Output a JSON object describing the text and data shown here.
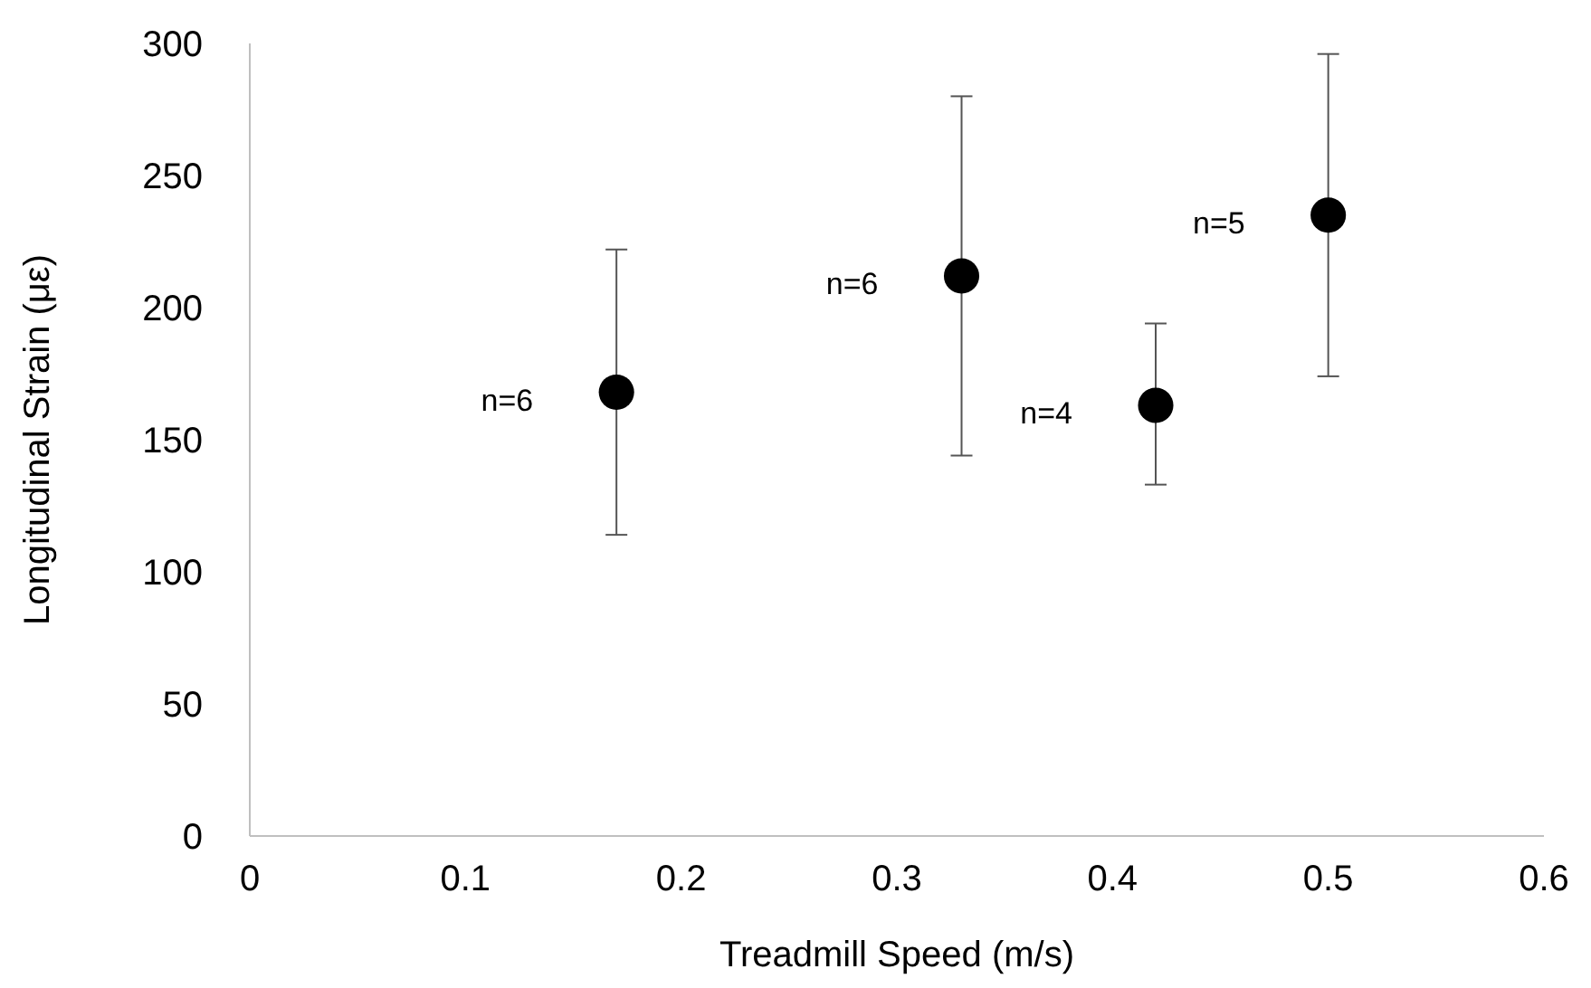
{
  "chart_data": {
    "type": "scatter",
    "xlabel": "Treadmill Speed (m/s)",
    "ylabel": "Longitudinal Strain (με)",
    "x": [
      0.17,
      0.33,
      0.42,
      0.5
    ],
    "values": [
      168,
      212,
      163,
      235
    ],
    "errors": [
      [
        114,
        222
      ],
      [
        144,
        280
      ],
      [
        133,
        194
      ],
      [
        174,
        296
      ]
    ],
    "color": "#000000",
    "marker": "circle",
    "grid": false,
    "xlim": [
      0,
      0.6
    ],
    "xticks": [
      0,
      0.1,
      0.2,
      0.3,
      0.4,
      0.5,
      0.6
    ],
    "ylim": [
      0,
      300
    ],
    "yticks": [
      0,
      50,
      100,
      150,
      200,
      250,
      300
    ],
    "annotations": [
      {
        "text": "n=6",
        "x": 0.17,
        "y": 168
      },
      {
        "text": "n=6",
        "x": 0.33,
        "y": 212
      },
      {
        "text": "n=4",
        "x": 0.42,
        "y": 163
      },
      {
        "text": "n=5",
        "x": 0.5,
        "y": 235
      }
    ]
  }
}
